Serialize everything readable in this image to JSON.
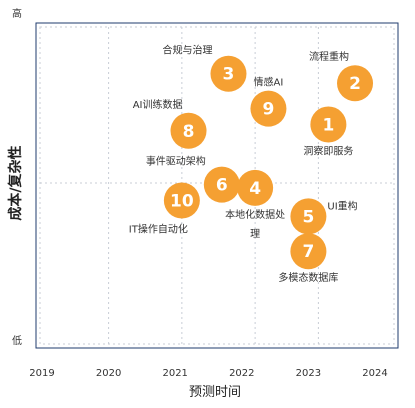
{
  "chart_data": {
    "type": "scatter",
    "title": "",
    "xlabel": "预测时间",
    "ylabel": "成本/复杂性",
    "x_ticks": [
      "2019",
      "2020",
      "2021",
      "2022",
      "2023",
      "2024"
    ],
    "xlim": [
      2019,
      2024
    ],
    "y_ticks": {
      "high": "高",
      "low": "低"
    },
    "ylim": [
      0,
      100
    ],
    "grid": true,
    "colors": {
      "bubble": "#F5A032",
      "grid": "#c8cdd6",
      "frame": "#1f3b6e"
    },
    "points": [
      {
        "id": "1",
        "label": "洞察即服务",
        "x": 2023.3,
        "y": 68,
        "label_pos": "below"
      },
      {
        "id": "2",
        "label": "流程重构",
        "x": 2023.7,
        "y": 81,
        "label_pos": "above-left"
      },
      {
        "id": "3",
        "label": "合规与治理",
        "x": 2021.8,
        "y": 84,
        "label_pos": "left-above"
      },
      {
        "id": "4",
        "label": "本地化数据处理",
        "x": 2022.2,
        "y": 48,
        "label_pos": "below"
      },
      {
        "id": "5",
        "label": "UI重构",
        "x": 2023.0,
        "y": 39,
        "label_pos": "right"
      },
      {
        "id": "6",
        "label": "事件驱动架构",
        "x": 2021.7,
        "y": 49,
        "label_pos": "left-above"
      },
      {
        "id": "7",
        "label": "多模态数据库",
        "x": 2023.0,
        "y": 28,
        "label_pos": "below"
      },
      {
        "id": "8",
        "label": "AI训练数据",
        "x": 2021.2,
        "y": 66,
        "label_pos": "above-left"
      },
      {
        "id": "9",
        "label": "情感AI",
        "x": 2022.4,
        "y": 73,
        "label_pos": "above"
      },
      {
        "id": "10",
        "label": "IT操作自动化",
        "x": 2021.1,
        "y": 44,
        "label_pos": "below-left"
      }
    ]
  }
}
